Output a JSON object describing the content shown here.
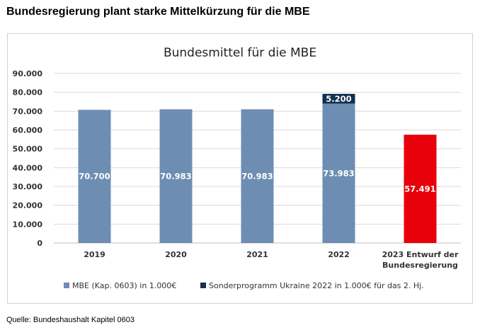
{
  "headline": "Bundesregierung plant starke Mittelkürzung für die MBE",
  "source": "Quelle: Bundeshaushalt Kapitel 0603",
  "colors": {
    "mbe": "#6E8DB3",
    "ukraine": "#12304F",
    "draft": "#E8000B",
    "grid": "#d9d9d9",
    "axis": "#bfbfbf"
  },
  "chart_data": {
    "type": "bar",
    "stacked": true,
    "title": "Bundesmittel für die MBE",
    "xlabel": "",
    "ylabel": "",
    "ylim": [
      0,
      90000
    ],
    "yticks": [
      0,
      10000,
      20000,
      30000,
      40000,
      50000,
      60000,
      70000,
      80000,
      90000
    ],
    "ytick_labels": [
      "0",
      "10.000",
      "20.000",
      "30.000",
      "40.000",
      "50.000",
      "60.000",
      "70.000",
      "80.000",
      "90.000"
    ],
    "grid": true,
    "legend": "bottom",
    "categories": [
      "2019",
      "2020",
      "2021",
      "2022",
      "2023 Entwurf der Bundesregierung"
    ],
    "category_lines": [
      [
        "2019"
      ],
      [
        "2020"
      ],
      [
        "2021"
      ],
      [
        "2022"
      ],
      [
        "2023 Entwurf der",
        "Bundesregierung"
      ]
    ],
    "series": [
      {
        "name": "MBE (Kap. 0603) in 1.000€",
        "values": [
          70700,
          70983,
          70983,
          73983,
          57491
        ],
        "labels": [
          "70.700",
          "70.983",
          "70.983",
          "73.983",
          "57.491"
        ]
      },
      {
        "name": "Sonderprogramm Ukraine 2022 in 1.000€ für das 2. Hj.",
        "values": [
          0,
          0,
          0,
          5200,
          0
        ],
        "labels": [
          "",
          "",
          "",
          "5.200",
          ""
        ]
      }
    ],
    "highlight_index": 4
  }
}
